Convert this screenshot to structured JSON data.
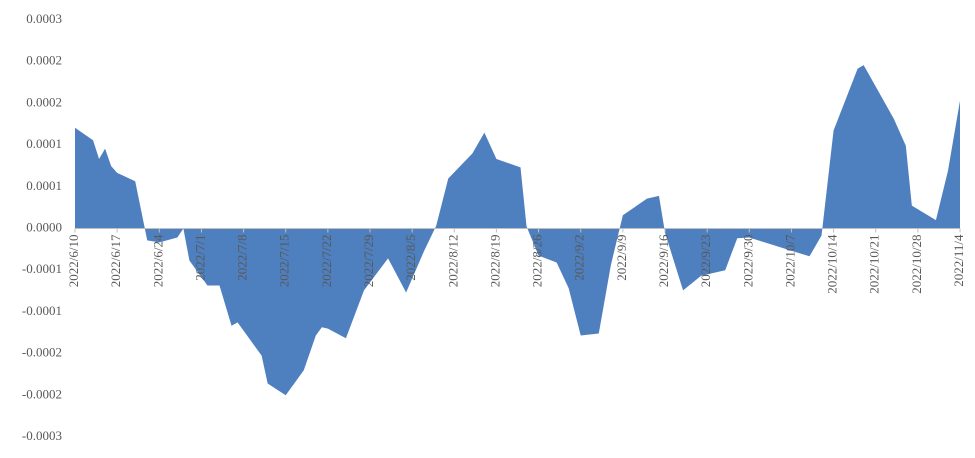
{
  "chart_data": {
    "type": "area",
    "x": [
      "2022/6/10",
      "2022/6/13",
      "2022/6/14",
      "2022/6/15",
      "2022/6/16",
      "2022/6/17",
      "2022/6/20",
      "2022/6/22",
      "2022/6/24",
      "2022/6/27",
      "2022/6/28",
      "2022/6/29",
      "2022/7/2",
      "2022/7/4",
      "2022/7/6",
      "2022/7/7",
      "2022/7/11",
      "2022/7/12",
      "2022/7/15",
      "2022/7/18",
      "2022/7/20",
      "2022/7/21",
      "2022/7/22",
      "2022/7/25",
      "2022/7/28",
      "2022/8/1",
      "2022/8/4",
      "2022/8/7",
      "2022/8/9",
      "2022/8/11",
      "2022/8/15",
      "2022/8/17",
      "2022/8/19",
      "2022/8/23",
      "2022/8/24",
      "2022/8/26",
      "2022/8/29",
      "2022/8/31",
      "2022/9/2",
      "2022/9/5",
      "2022/9/7",
      "2022/9/9",
      "2022/9/13",
      "2022/9/15",
      "2022/9/16",
      "2022/9/19",
      "2022/9/22",
      "2022/9/26",
      "2022/9/28",
      "2022/9/30",
      "2022/10/7",
      "2022/10/10",
      "2022/10/12",
      "2022/10/14",
      "2022/10/18",
      "2022/10/19",
      "2022/10/24",
      "2022/10/26",
      "2022/10/27",
      "2022/10/31",
      "2022/11/2",
      "2022/11/4"
    ],
    "values": [
      0.000145,
      0.000127,
      0.0001,
      0.000115,
      9e-05,
      8e-05,
      6.8e-05,
      -1.7e-05,
      -2e-05,
      -1.3e-05,
      0,
      -4.6e-05,
      -8.2e-05,
      -8.2e-05,
      -0.00014,
      -0.000135,
      -0.000183,
      -0.000223,
      -0.00024,
      -0.000204,
      -0.000154,
      -0.000142,
      -0.000144,
      -0.000158,
      -8.9e-05,
      -4.3e-05,
      -9.2e-05,
      -3.2e-05,
      4e-06,
      7.2e-05,
      0.000108,
      0.000138,
      0.0001,
      8.8e-05,
      3e-06,
      -3.9e-05,
      -4.9e-05,
      -8.6e-05,
      -0.000154,
      -0.000151,
      -5.3e-05,
      1.9e-05,
      4.3e-05,
      4.7e-05,
      -6e-06,
      -8.9e-05,
      -6.8e-05,
      -6e-05,
      -1.4e-05,
      -1.3e-05,
      -3.2e-05,
      -4e-05,
      -1e-05,
      0.000141,
      0.00023,
      0.000235,
      0.000158,
      0.000119,
      3.3e-05,
      1.2e-05,
      8.3e-05,
      0.000184
    ],
    "color": "#4e7fbf",
    "xlim": [
      "2022/6/10",
      "2022/11/4"
    ],
    "xticks": [
      "2022/6/10",
      "2022/6/17",
      "2022/6/24",
      "2022/7/1",
      "2022/7/8",
      "2022/7/15",
      "2022/7/22",
      "2022/7/29",
      "2022/8/5",
      "2022/8/12",
      "2022/8/19",
      "2022/8/26",
      "2022/9/2",
      "2022/9/9",
      "2022/9/16",
      "2022/9/23",
      "2022/9/30",
      "2022/10/7",
      "2022/10/14",
      "2022/10/21",
      "2022/10/28",
      "2022/11/4"
    ],
    "ylim": [
      -0.0003,
      0.0003
    ],
    "yticks": [
      {
        "value": 0.0003,
        "label": "0.0003"
      },
      {
        "value": 0.00024,
        "label": "0.0002"
      },
      {
        "value": 0.00018,
        "label": "0.0002"
      },
      {
        "value": 0.00012,
        "label": "0.0001"
      },
      {
        "value": 6e-05,
        "label": "0.0001"
      },
      {
        "value": 0,
        "label": "0.0000"
      },
      {
        "value": -6e-05,
        "label": "-0.0001"
      },
      {
        "value": -0.00012,
        "label": "-0.0001"
      },
      {
        "value": -0.00018,
        "label": "-0.0002"
      },
      {
        "value": -0.00024,
        "label": "-0.0002"
      },
      {
        "value": -0.0003,
        "label": "-0.0003"
      }
    ],
    "grid": false
  }
}
